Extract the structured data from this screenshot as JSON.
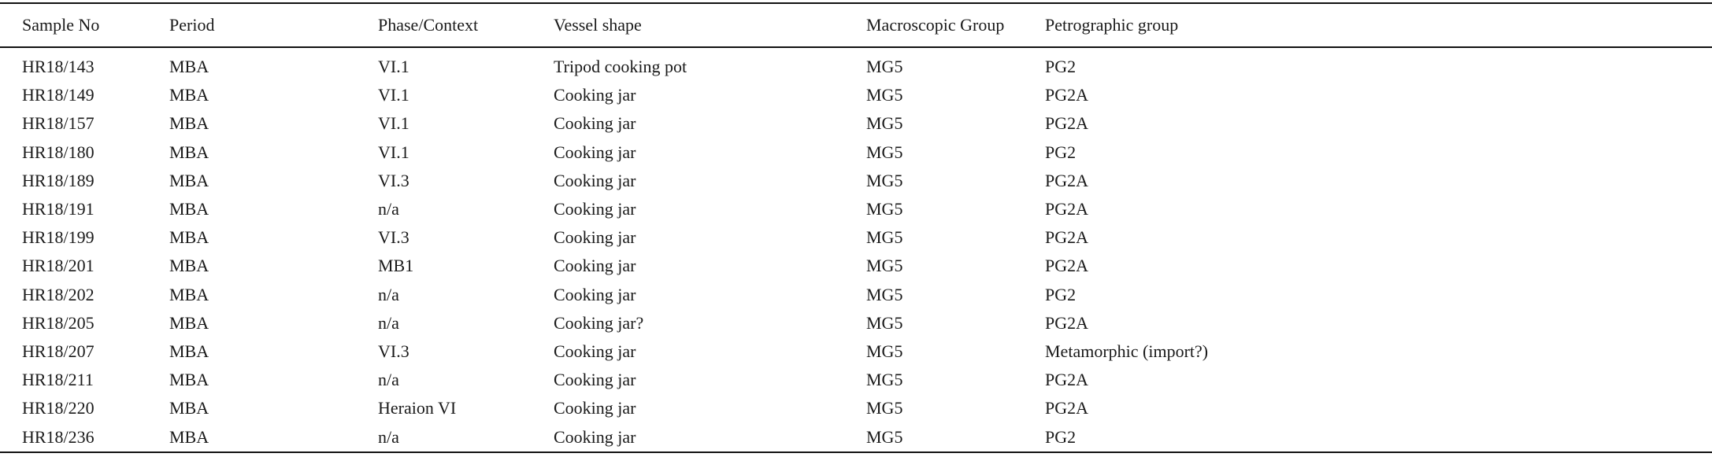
{
  "table": {
    "headers": [
      "Sample No",
      "Period",
      "Phase/Context",
      "Vessel shape",
      "Macroscopic Group",
      "Petrographic group"
    ],
    "rows": [
      [
        "HR18/143",
        "MBA",
        "VI.1",
        "Tripod cooking pot",
        "MG5",
        "PG2"
      ],
      [
        "HR18/149",
        "MBA",
        "VI.1",
        "Cooking jar",
        "MG5",
        "PG2A"
      ],
      [
        "HR18/157",
        "MBA",
        "VI.1",
        "Cooking jar",
        "MG5",
        "PG2A"
      ],
      [
        "HR18/180",
        "MBA",
        "VI.1",
        "Cooking jar",
        "MG5",
        "PG2"
      ],
      [
        "HR18/189",
        "MBA",
        "VI.3",
        "Cooking jar",
        "MG5",
        "PG2A"
      ],
      [
        "HR18/191",
        "MBA",
        "n/a",
        "Cooking jar",
        "MG5",
        "PG2A"
      ],
      [
        "HR18/199",
        "MBA",
        "VI.3",
        "Cooking jar",
        "MG5",
        "PG2A"
      ],
      [
        "HR18/201",
        "MBA",
        "MB1",
        "Cooking jar",
        "MG5",
        "PG2A"
      ],
      [
        "HR18/202",
        "MBA",
        "n/a",
        "Cooking jar",
        "MG5",
        "PG2"
      ],
      [
        "HR18/205",
        "MBA",
        "n/a",
        "Cooking jar?",
        "MG5",
        "PG2A"
      ],
      [
        "HR18/207",
        "MBA",
        "VI.3",
        "Cooking jar",
        "MG5",
        "Metamorphic (import?)"
      ],
      [
        "HR18/211",
        "MBA",
        "n/a",
        "Cooking jar",
        "MG5",
        "PG2A"
      ],
      [
        "HR18/220",
        "MBA",
        "Heraion VI",
        "Cooking jar",
        "MG5",
        "PG2A"
      ],
      [
        "HR18/236",
        "MBA",
        "n/a",
        "Cooking jar",
        "MG5",
        "PG2"
      ]
    ]
  }
}
